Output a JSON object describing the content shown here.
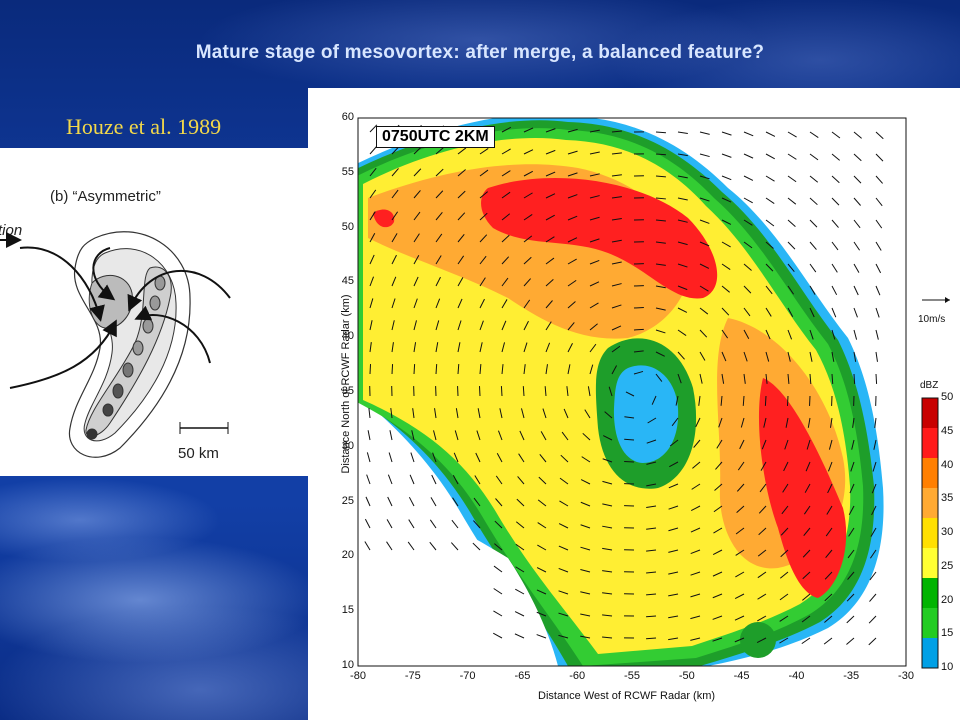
{
  "slide": {
    "title": "Mature stage of mesovortex: after merge, a balanced feature?",
    "citation": "Houze et al. 1989"
  },
  "sketch": {
    "panel_label": "(b) “Asymmetric”",
    "partial_text": "tion",
    "scale_label": "50 km"
  },
  "radar_plot": {
    "time_label": "0750UTC 2KM",
    "xlabel": "Distance West of RCWF Radar (km)",
    "ylabel": "Distance North of RCWF Radar (km)",
    "xticks": [
      "-80",
      "-75",
      "-70",
      "-65",
      "-60",
      "-55",
      "-50",
      "-45",
      "-40",
      "-35",
      "-30"
    ],
    "yticks": [
      "60",
      "55",
      "50",
      "45",
      "40",
      "35",
      "30",
      "25",
      "20",
      "15",
      "10"
    ],
    "vector_scale_label": "10m/s",
    "colorbar": {
      "unit": "dBZ",
      "ticks": [
        "50",
        "45",
        "40",
        "35",
        "30",
        "25",
        "20",
        "15",
        "10"
      ],
      "colors": [
        "#c80000",
        "#ff1a1a",
        "#ff7f00",
        "#ffaa33",
        "#ffe000",
        "#ffff33",
        "#00b400",
        "#22cc22",
        "#00a0e6"
      ]
    }
  }
}
